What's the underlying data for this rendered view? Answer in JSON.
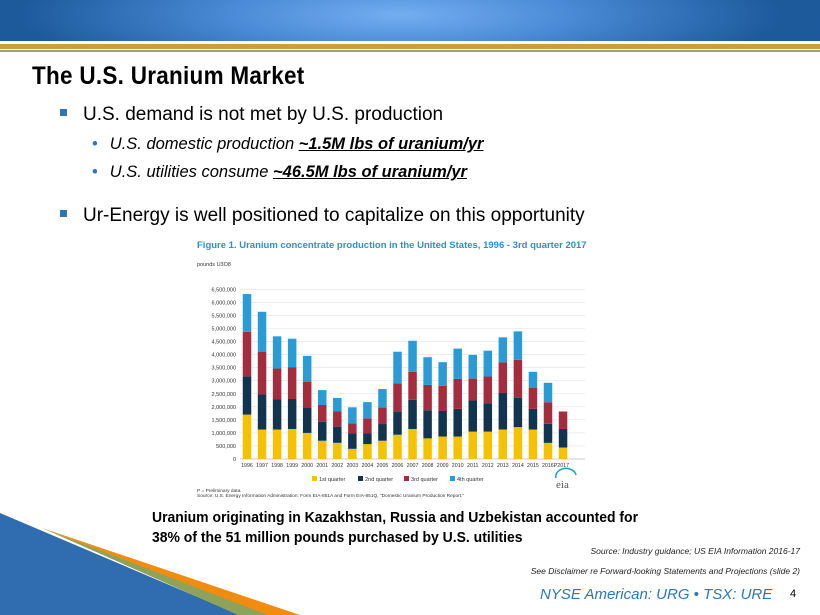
{
  "slide": {
    "title": "The U.S. Uranium Market",
    "bullets": [
      {
        "text": "U.S. demand is not met by U.S. production",
        "sub": [
          {
            "text": "U.S. domestic production ",
            "emphasis": "~1.5M lbs of uranium/yr"
          },
          {
            "text": "U.S. utilities consume ",
            "emphasis": "~46.5M lbs of uranium/yr"
          }
        ]
      },
      {
        "text": "Ur-Energy is well positioned to capitalize on this opportunity"
      }
    ],
    "callout_line1": "Uranium originating in Kazakhstan, Russia and Uzbekistan accounted for",
    "callout_line2": "38% of the 51 million pounds purchased by U.S. utilities",
    "source": "Source:  Industry guidance; US EIA Information 2016-17",
    "disclaimer": "See Disclaimer re Forward-looking Statements and Projections (slide 2)",
    "ticker": "NYSE American: URG • TSX: URE",
    "page_number": "4"
  },
  "colors": {
    "header": "#2e6fb8",
    "gold": "#d19a3a",
    "accent_blue": "#2e75b6",
    "q1": "#f5c200",
    "q2": "#13344f",
    "q3": "#a32d3f",
    "q4": "#2b9bd6",
    "chart_title": "#2b8fd0"
  },
  "chart_data": {
    "type": "bar",
    "stacked": true,
    "title": "Figure 1.  Uranium concentrate production in the United States, 1996 - 3rd quarter 2017",
    "ylabel": "pounds U3O8",
    "xlabel": "",
    "ylim": [
      0,
      6500000
    ],
    "yticks": [
      "0",
      "500,000",
      "1,000,000",
      "1,500,000",
      "2,000,000",
      "2,500,000",
      "3,000,000",
      "3,500,000",
      "4,000,000",
      "4,500,000",
      "5,000,000",
      "5,500,000",
      "6,000,000",
      "6,500,000"
    ],
    "grid": true,
    "legend_position": "bottom",
    "categories": [
      "1996",
      "1997",
      "1998",
      "1999",
      "2000",
      "2001",
      "2002",
      "2003",
      "2004",
      "2005",
      "2006",
      "2007",
      "2008",
      "2009",
      "2010",
      "2011",
      "2012",
      "2013",
      "2014",
      "2015",
      "2016P",
      "2017P"
    ],
    "category_labels_text": "2016P2017",
    "series": [
      {
        "name": "1st quarter",
        "values": [
          1700000,
          1130000,
          1130000,
          1150000,
          1000000,
          700000,
          620000,
          390000,
          570000,
          700000,
          930000,
          1150000,
          790000,
          860000,
          860000,
          1050000,
          1050000,
          1130000,
          1220000,
          1130000,
          620000,
          440000
        ]
      },
      {
        "name": "2nd quarter",
        "values": [
          1470000,
          1340000,
          1150000,
          1150000,
          970000,
          730000,
          620000,
          590000,
          410000,
          640000,
          870000,
          1120000,
          1080000,
          980000,
          1060000,
          1190000,
          1080000,
          1400000,
          1120000,
          790000,
          730000,
          710000
        ]
      },
      {
        "name": "3rd quarter",
        "values": [
          1700000,
          1630000,
          1190000,
          1220000,
          980000,
          640000,
          580000,
          390000,
          580000,
          630000,
          1100000,
          1070000,
          970000,
          960000,
          1150000,
          840000,
          1030000,
          1170000,
          1460000,
          800000,
          820000,
          670000
        ]
      },
      {
        "name": "4th quarter",
        "values": [
          1450000,
          1540000,
          1230000,
          1090000,
          1000000,
          570000,
          520000,
          610000,
          620000,
          710000,
          1210000,
          1190000,
          1060000,
          910000,
          1160000,
          910000,
          990000,
          960000,
          1090000,
          620000,
          750000,
          null
        ]
      }
    ],
    "notes": [
      "P = Preliminary data.",
      "Source: U.S. Energy Information Administration: Form EIA-851A and Form EIA-851Q, \"Domestic Uranium Production Report.\""
    ],
    "logo": "eia"
  }
}
